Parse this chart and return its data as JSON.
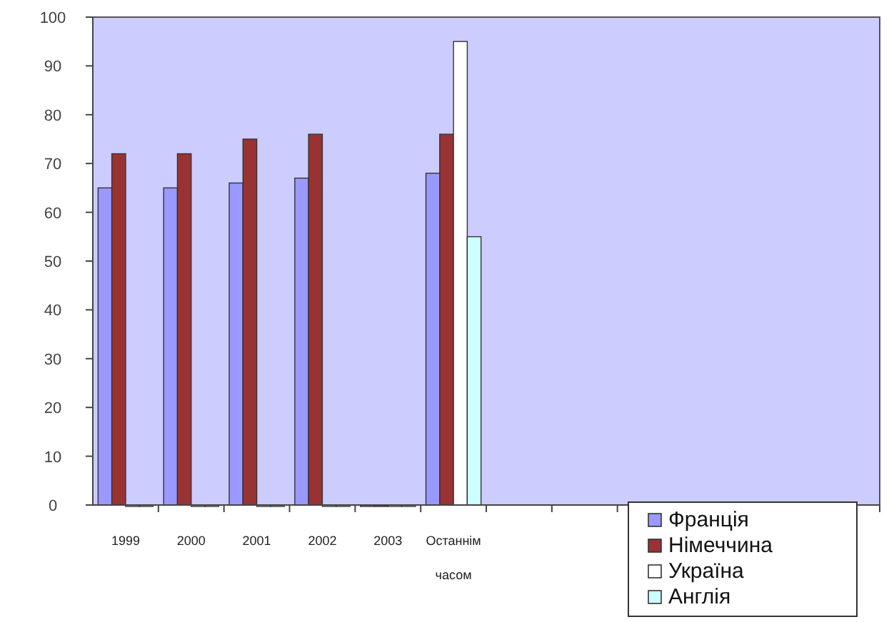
{
  "chart_data": {
    "type": "bar",
    "categories": [
      "1999",
      "2000",
      "2001",
      "2002",
      "2003",
      "Останнім часом",
      null,
      null,
      null,
      null,
      null,
      null
    ],
    "series": [
      {
        "name": "Франція",
        "color": "#9999ff",
        "values": [
          65,
          65,
          66,
          67,
          0,
          68,
          null,
          null,
          null,
          null,
          null,
          null
        ]
      },
      {
        "name": "Німеччина",
        "color": "#993333",
        "values": [
          72,
          72,
          75,
          76,
          0,
          76,
          null,
          null,
          null,
          null,
          null,
          null
        ]
      },
      {
        "name": "Україна",
        "color": "#ffffff",
        "values": [
          0,
          0,
          0,
          0,
          0,
          95,
          null,
          null,
          null,
          null,
          null,
          null
        ]
      },
      {
        "name": "Англія",
        "color": "#ccffff",
        "values": [
          0,
          0,
          0,
          0,
          0,
          55,
          null,
          null,
          null,
          null,
          null,
          null
        ]
      }
    ],
    "ylim": [
      0,
      100
    ],
    "yticks": [
      0,
      10,
      20,
      30,
      40,
      50,
      60,
      70,
      80,
      90,
      100
    ],
    "grid": false,
    "legend": "bottom right"
  }
}
